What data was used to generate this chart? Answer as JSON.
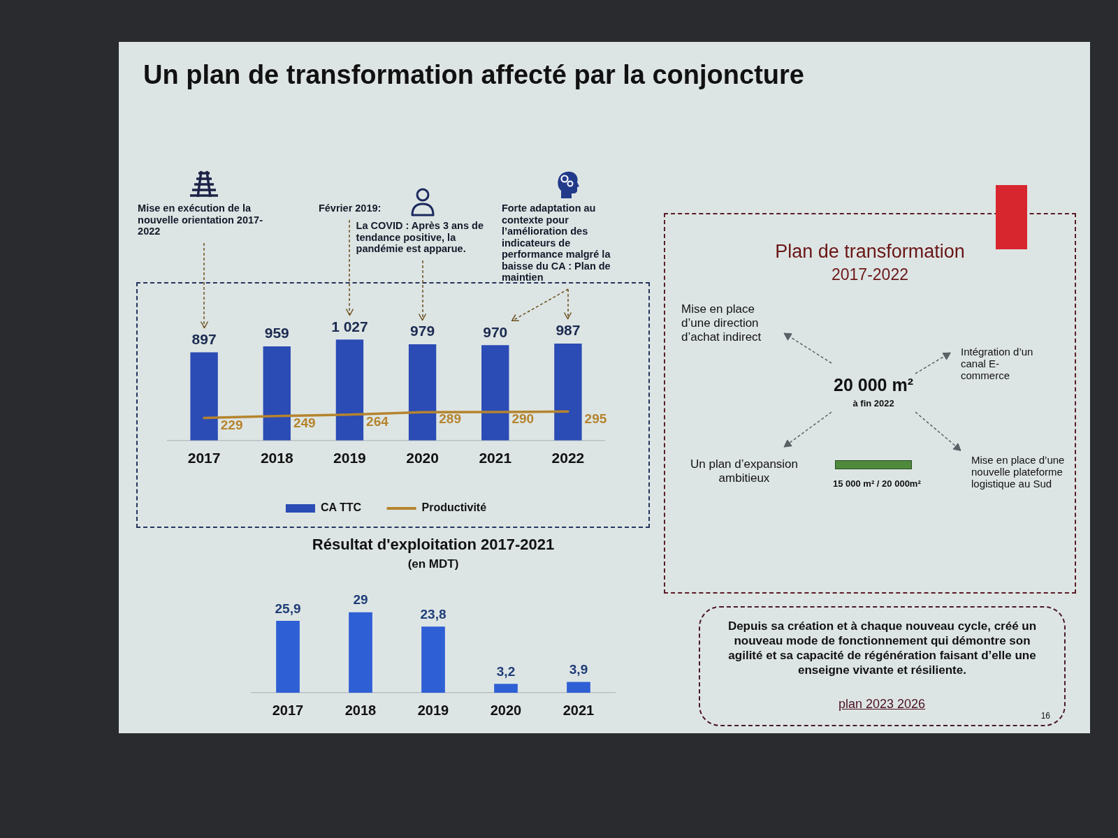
{
  "chart_data": [
    {
      "type": "bar",
      "title": "Un plan de transformation affecté par la conjoncture",
      "categories": [
        "2017",
        "2018",
        "2019",
        "2020",
        "2021",
        "2022"
      ],
      "series": [
        {
          "name": "CA TTC",
          "type": "bar",
          "color": "#2b4bb5",
          "values": [
            897,
            959,
            1027,
            979,
            970,
            987
          ],
          "value_labels": [
            "897",
            "959",
            "1 027",
            "979",
            "970",
            "987"
          ]
        },
        {
          "name": "Productivité",
          "type": "line",
          "color": "#b5842e",
          "values": [
            229,
            249,
            264,
            289,
            290,
            295
          ],
          "value_labels": [
            "229",
            "249",
            "264",
            "289",
            "290",
            "295"
          ]
        }
      ],
      "tick_labels": "x",
      "legend": "bottom",
      "marker": "none",
      "annotations": [
        "Mise en exécution de la nouvelle orientation 2017-2022",
        "Février 2019:",
        "La COVID : Après 3 ans de tendance positive, la pandémie est apparue.",
        "Forte adaptation au contexte pour l’amélioration des indicateurs de performance malgré la baisse du CA : Plan de maintien"
      ]
    },
    {
      "type": "bar",
      "title": "Résultat d'exploitation 2017-2021",
      "subtitle": "(en MDT)",
      "categories": [
        "2017",
        "2018",
        "2019",
        "2020",
        "2021"
      ],
      "values": [
        25.9,
        29,
        23.8,
        3.2,
        3.9
      ],
      "value_labels": [
        "25,9",
        "29",
        "23,8",
        "3,2",
        "3,9"
      ],
      "color": "#2f5fd5",
      "tick_labels": "x"
    },
    {
      "type": "other",
      "title": "Plan de transformation",
      "subtitle": "2017-2022",
      "annotations": [
        "Mise en place d’une direction d’achat indirect",
        "Intégration d’un canal E-commerce",
        "20 000 m²",
        "à fin 2022",
        "Un plan d’expansion ambitieux",
        "15 000 m² / 20 000m²",
        "Mise en place d’une nouvelle plateforme logistique au Sud"
      ]
    },
    {
      "type": "other",
      "annotations": [
        "Depuis sa création et à chaque nouveau cycle, créé un nouveau mode de fonctionnement qui démontre son agilité et sa capacité de régénération faisant d’elle une enseigne vivante et résiliente.",
        "plan 2023 2026",
        "16"
      ]
    }
  ]
}
